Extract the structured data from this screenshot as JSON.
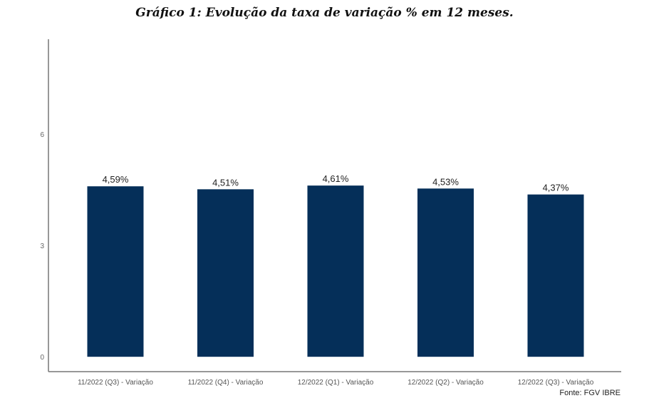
{
  "chart_data": {
    "type": "bar",
    "title": "Gráfico 1: Evolução da taxa de variação % em 12 meses.",
    "categories": [
      "11/2022 (Q3) - Variação",
      "11/2022 (Q4) - Variação",
      "12/2022 (Q1) - Variação",
      "12/2022 (Q2) - Variação",
      "12/2022 (Q3) - Variação"
    ],
    "values": [
      4.59,
      4.51,
      4.61,
      4.53,
      4.37
    ],
    "data_labels": [
      "4,59%",
      "4,51%",
      "4,61%",
      "4,53%",
      "4,37%"
    ],
    "xlabel": "",
    "ylabel": "",
    "ylim": [
      -0.4,
      8.55
    ],
    "yticks": [
      0,
      3,
      6
    ],
    "grid": false,
    "bar_color": "#052f59",
    "source": "Fonte: FGV IBRE"
  }
}
